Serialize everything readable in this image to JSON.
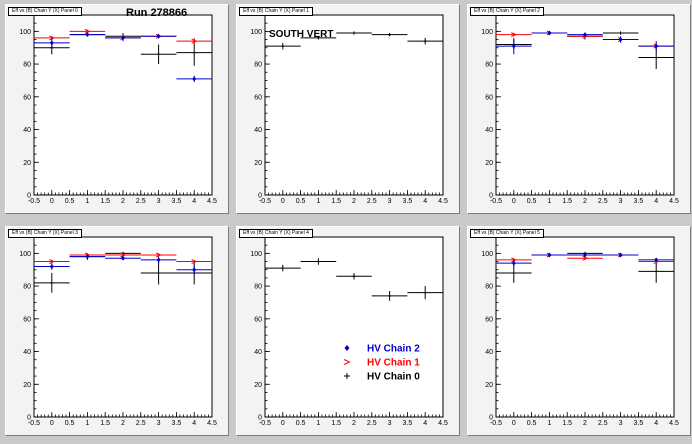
{
  "header": {
    "run_label": "Run 278866",
    "south_label": "SOUTH VERT"
  },
  "pads": [
    {
      "title": "Eff vs (B) Chain Y (X) Panel 0"
    },
    {
      "title": "Eff vs (B) Chain Y (X) Panel 1"
    },
    {
      "title": "Eff vs (B) Chain Y (X) Panel 2"
    },
    {
      "title": "Eff vs (B) Chain Y (X) Panel 3"
    },
    {
      "title": "Eff vs (B) Chain Y (X) Panel 4"
    },
    {
      "title": "Eff vs (B) Chain Y (X) Panel 5"
    }
  ],
  "legend": [
    {
      "label": "HV Chain 2",
      "color": "#0000cc",
      "marker": "diamond"
    },
    {
      "label": "HV Chain 1",
      "color": "#ff0000",
      "marker": "arrow"
    },
    {
      "label": "HV Chain 0",
      "color": "#000000",
      "marker": "cross"
    }
  ],
  "chart_data": [
    {
      "type": "scatter",
      "title": "",
      "xlabel": "",
      "ylabel": "",
      "xlim": [
        -0.5,
        4.5
      ],
      "ylim": [
        0,
        110
      ],
      "xticks": [
        "-0.5",
        "0",
        "0.5",
        "1",
        "1.5",
        "2",
        "2.5",
        "3",
        "3.5",
        "4",
        "4.5"
      ],
      "yticks": [
        "0",
        "20",
        "40",
        "60",
        "80",
        "100"
      ],
      "series": [
        {
          "name": "HV Chain 0",
          "color": "#000000",
          "x": [
            0,
            1,
            2,
            3,
            4
          ],
          "y": [
            90,
            98,
            97,
            86,
            87
          ],
          "err": [
            4,
            1,
            2,
            6,
            8
          ]
        },
        {
          "name": "HV Chain 1",
          "color": "#ff0000",
          "x": [
            0,
            1,
            2,
            3,
            4
          ],
          "y": [
            96,
            100,
            96,
            97,
            94
          ],
          "err": [
            1,
            1,
            2,
            1,
            2
          ]
        },
        {
          "name": "HV Chain 2",
          "color": "#0000cc",
          "x": [
            0,
            1,
            2,
            3,
            4
          ],
          "y": [
            93,
            98,
            96,
            97,
            71
          ],
          "err": [
            3,
            1,
            2,
            1,
            2
          ]
        }
      ]
    },
    {
      "type": "scatter",
      "title": "",
      "xlabel": "",
      "ylabel": "",
      "xlim": [
        -0.5,
        4.5
      ],
      "ylim": [
        0,
        110
      ],
      "xticks": [
        "-0.5",
        "0",
        "0.5",
        "1",
        "1.5",
        "2",
        "2.5",
        "3",
        "3.5",
        "4",
        "4.5"
      ],
      "yticks": [
        "0",
        "20",
        "40",
        "60",
        "80",
        "100"
      ],
      "series": [
        {
          "name": "HV Chain 0",
          "color": "#000000",
          "x": [
            0,
            1,
            2,
            3,
            4
          ],
          "y": [
            91,
            96,
            99,
            98,
            94
          ],
          "err": [
            2,
            1,
            1,
            1,
            2
          ]
        }
      ]
    },
    {
      "type": "scatter",
      "title": "",
      "xlabel": "",
      "ylabel": "",
      "xlim": [
        -0.5,
        4.5
      ],
      "ylim": [
        0,
        110
      ],
      "xticks": [
        "-0.5",
        "0",
        "0.5",
        "1",
        "1.5",
        "2",
        "2.5",
        "3",
        "3.5",
        "4",
        "4.5"
      ],
      "yticks": [
        "0",
        "20",
        "40",
        "60",
        "80",
        "100"
      ],
      "series": [
        {
          "name": "HV Chain 0",
          "color": "#000000",
          "x": [
            0,
            1,
            2,
            3,
            4
          ],
          "y": [
            92,
            99,
            97,
            99,
            84
          ],
          "err": [
            3,
            1,
            2,
            1,
            7
          ]
        },
        {
          "name": "HV Chain 1",
          "color": "#ff0000",
          "x": [
            0,
            1,
            2,
            3,
            4
          ],
          "y": [
            98,
            99,
            97,
            95,
            91
          ],
          "err": [
            1,
            1,
            1,
            1,
            2
          ]
        },
        {
          "name": "HV Chain 2",
          "color": "#0000cc",
          "x": [
            0,
            1,
            2,
            3,
            4
          ],
          "y": [
            91,
            99,
            98,
            95,
            91
          ],
          "err": [
            5,
            1,
            1,
            2,
            3
          ]
        }
      ]
    },
    {
      "type": "scatter",
      "title": "",
      "xlabel": "",
      "ylabel": "",
      "xlim": [
        -0.5,
        4.5
      ],
      "ylim": [
        0,
        110
      ],
      "xticks": [
        "-0.5",
        "0",
        "0.5",
        "1",
        "1.5",
        "2",
        "2.5",
        "3",
        "3.5",
        "4",
        "4.5"
      ],
      "yticks": [
        "0",
        "20",
        "40",
        "60",
        "80",
        "100"
      ],
      "series": [
        {
          "name": "HV Chain 0",
          "color": "#000000",
          "x": [
            0,
            1,
            2,
            3,
            4
          ],
          "y": [
            82,
            98,
            100,
            88,
            88
          ],
          "err": [
            6,
            2,
            1,
            7,
            7
          ]
        },
        {
          "name": "HV Chain 1",
          "color": "#ff0000",
          "x": [
            0,
            1,
            2,
            3,
            4
          ],
          "y": [
            95,
            99,
            99,
            99,
            95
          ],
          "err": [
            1,
            1,
            1,
            1,
            1
          ]
        },
        {
          "name": "HV Chain 2",
          "color": "#0000cc",
          "x": [
            0,
            1,
            2,
            3,
            4
          ],
          "y": [
            92,
            98,
            97,
            96,
            90
          ],
          "err": [
            2,
            1,
            1,
            2,
            3
          ]
        }
      ]
    },
    {
      "type": "scatter",
      "title": "",
      "xlabel": "",
      "ylabel": "",
      "xlim": [
        -0.5,
        4.5
      ],
      "ylim": [
        0,
        110
      ],
      "xticks": [
        "-0.5",
        "0",
        "0.5",
        "1",
        "1.5",
        "2",
        "2.5",
        "3",
        "3.5",
        "4",
        "4.5"
      ],
      "yticks": [
        "0",
        "20",
        "40",
        "60",
        "80",
        "100"
      ],
      "series": [
        {
          "name": "HV Chain 0",
          "color": "#000000",
          "x": [
            0,
            1,
            2,
            3,
            4
          ],
          "y": [
            91,
            95,
            86,
            74,
            76
          ],
          "err": [
            2,
            2,
            2,
            3,
            4
          ]
        }
      ]
    },
    {
      "type": "scatter",
      "title": "",
      "xlabel": "",
      "ylabel": "",
      "xlim": [
        -0.5,
        4.5
      ],
      "ylim": [
        0,
        110
      ],
      "xticks": [
        "-0.5",
        "0",
        "0.5",
        "1",
        "1.5",
        "2",
        "2.5",
        "3",
        "3.5",
        "4",
        "4.5"
      ],
      "yticks": [
        "0",
        "20",
        "40",
        "60",
        "80",
        "100"
      ],
      "series": [
        {
          "name": "HV Chain 0",
          "color": "#000000",
          "x": [
            0,
            1,
            2,
            3,
            4
          ],
          "y": [
            88,
            99,
            100,
            99,
            89
          ],
          "err": [
            6,
            1,
            1,
            1,
            7
          ]
        },
        {
          "name": "HV Chain 1",
          "color": "#ff0000",
          "x": [
            0,
            1,
            2,
            3,
            4
          ],
          "y": [
            96,
            99,
            97,
            99,
            95
          ],
          "err": [
            1,
            1,
            1,
            1,
            1
          ]
        },
        {
          "name": "HV Chain 2",
          "color": "#0000cc",
          "x": [
            0,
            1,
            2,
            3,
            4
          ],
          "y": [
            94,
            99,
            99,
            99,
            96
          ],
          "err": [
            2,
            1,
            1,
            1,
            1
          ]
        }
      ]
    }
  ]
}
